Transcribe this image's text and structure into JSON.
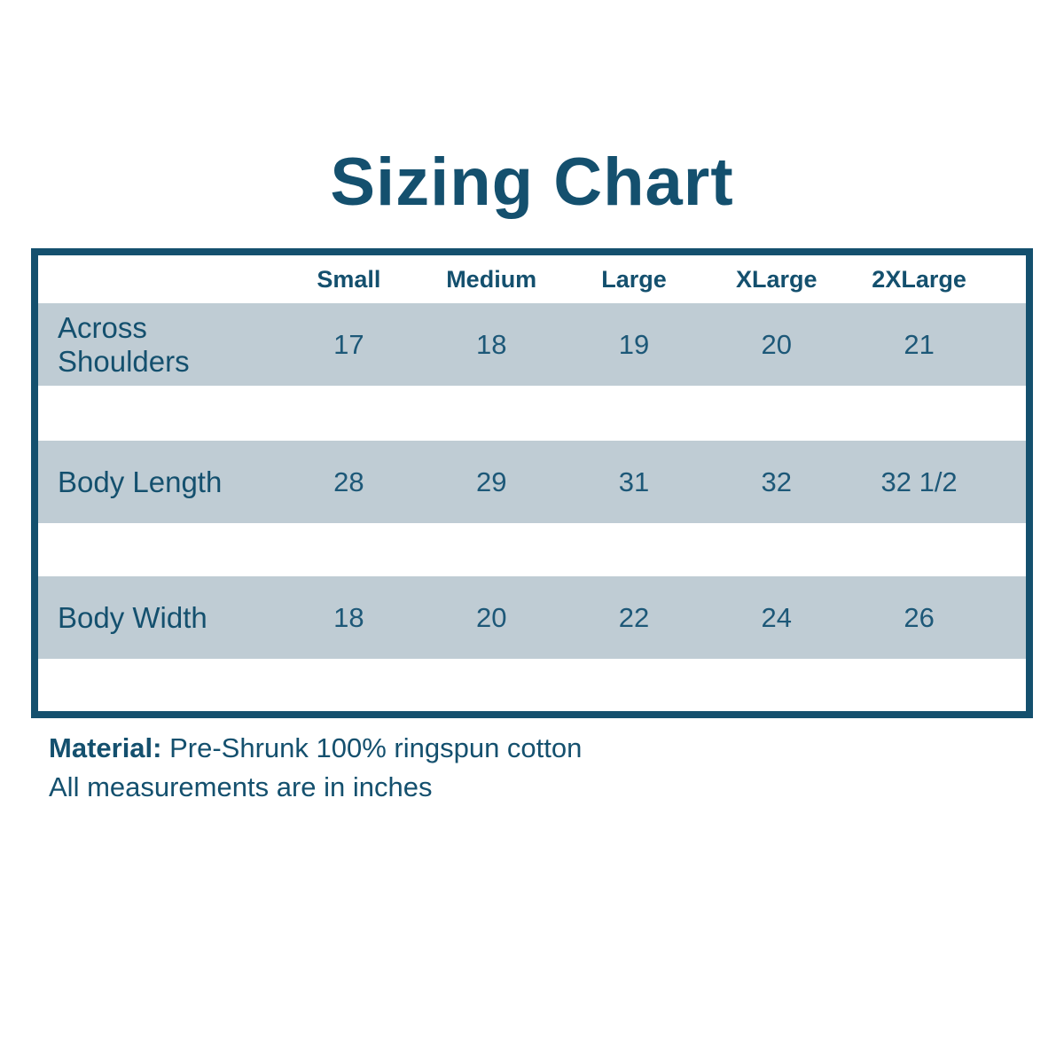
{
  "title": "Sizing Chart",
  "table": {
    "size_headers": [
      "Small",
      "Medium",
      "Large",
      "XLarge",
      "2XLarge"
    ],
    "rows": [
      {
        "label": "Across Shoulders",
        "values": [
          "17",
          "18",
          "19",
          "20",
          "21"
        ]
      },
      {
        "label": "Body Length",
        "values": [
          "28",
          "29",
          "31",
          "32",
          "32 1/2"
        ]
      },
      {
        "label": "Body Width",
        "values": [
          "18",
          "20",
          "22",
          "24",
          "26"
        ]
      }
    ]
  },
  "footer": {
    "material_label": "Material:",
    "material_value": "Pre-Shrunk 100% ringspun cotton",
    "note": "All measurements are in inches"
  },
  "colors": {
    "primary_text_and_border": "#14506e",
    "row_band_background": "#bfccd4",
    "page_background": "#ffffff"
  },
  "chart_data": {
    "type": "table",
    "title": "Sizing Chart",
    "columns": [
      "",
      "Small",
      "Medium",
      "Large",
      "XLarge",
      "2XLarge"
    ],
    "rows": [
      [
        "Across Shoulders",
        "17",
        "18",
        "19",
        "20",
        "21"
      ],
      [
        "Body Length",
        "28",
        "29",
        "31",
        "32",
        "32 1/2"
      ],
      [
        "Body Width",
        "18",
        "20",
        "22",
        "24",
        "26"
      ]
    ],
    "notes": [
      "Material: Pre-Shrunk 100% ringspun cotton",
      "All measurements are in inches"
    ],
    "units": "inches",
    "layout": "banded rows, label column left, size columns centered"
  }
}
